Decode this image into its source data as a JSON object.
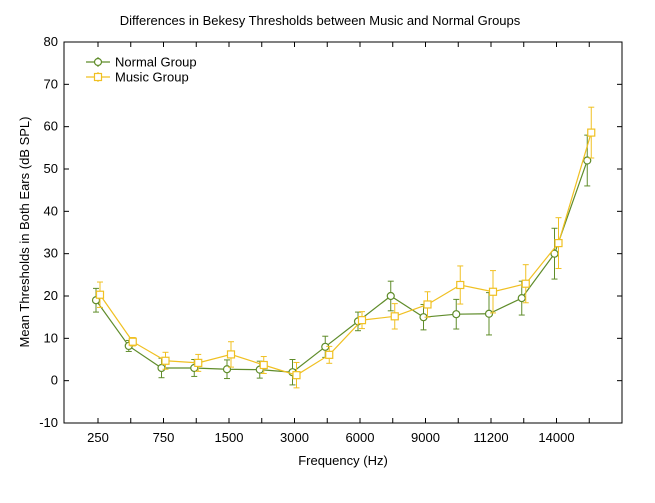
{
  "chart_data": {
    "type": "line",
    "title": "Differences in Bekesy Thresholds between Music and Normal Groups",
    "xlabel": "Frequency (Hz)",
    "ylabel": "Mean Thresholds in Both Ears (dB SPL)",
    "x_tick_labels": [
      "250",
      "750",
      "1500",
      "3000",
      "6000",
      "9000",
      "11200",
      "14000"
    ],
    "y_ticks": [
      -10,
      0,
      10,
      20,
      30,
      40,
      50,
      60,
      70,
      80
    ],
    "ylim": [
      -10,
      80
    ],
    "grid": false,
    "legend_position": "top-left",
    "series": [
      {
        "name": "Normal Group",
        "color": "#5f8c2a",
        "marker": "circle",
        "x": [
          0,
          0.5,
          1,
          1.5,
          2,
          2.5,
          3,
          3.5,
          4,
          4.5,
          5,
          5.5,
          6,
          6.5,
          7,
          7.5
        ],
        "values": [
          19,
          8.2,
          3,
          3,
          2.7,
          2.6,
          2,
          8,
          14,
          20,
          15,
          15.7,
          15.8,
          19.5,
          30,
          52
        ],
        "error": [
          2.8,
          1.3,
          2.3,
          2.0,
          2.2,
          2.0,
          3.0,
          2.5,
          2.2,
          3.5,
          3.0,
          3.5,
          5.0,
          4.0,
          6.0,
          6.0
        ]
      },
      {
        "name": "Music Group",
        "color": "#f0c022",
        "marker": "square",
        "x": [
          0,
          0.5,
          1,
          1.5,
          2,
          2.5,
          3,
          3.5,
          4,
          4.5,
          5,
          5.5,
          6,
          6.5,
          7,
          7.5
        ],
        "values": [
          20.3,
          9.2,
          4.7,
          4.2,
          6.2,
          3.7,
          1.3,
          6.1,
          14.3,
          15.2,
          18,
          22.6,
          21,
          22.9,
          32.5,
          58.6
        ],
        "error": [
          3.0,
          1.0,
          2.0,
          2.0,
          3.0,
          2.0,
          3.0,
          2.0,
          2.0,
          3.0,
          3.0,
          4.5,
          5.0,
          4.5,
          6.0,
          6.0
        ]
      }
    ]
  }
}
